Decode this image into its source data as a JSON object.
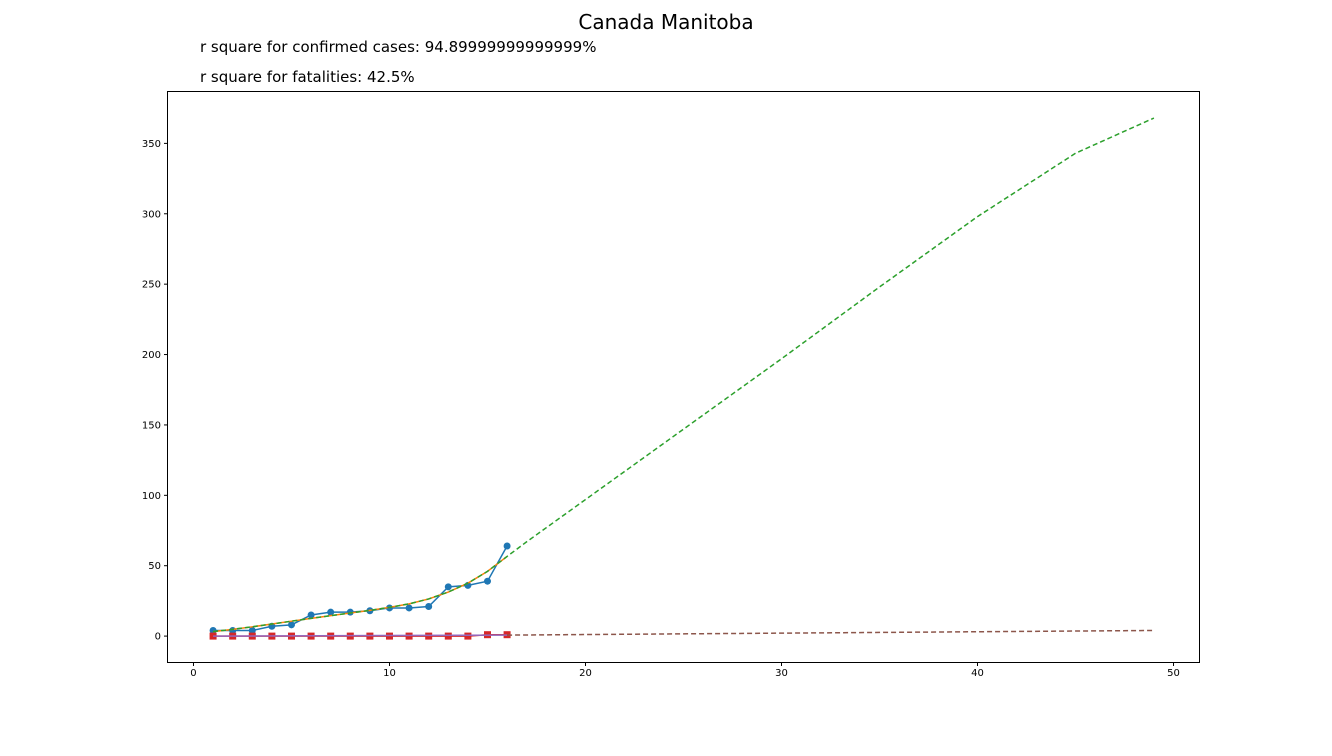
{
  "figure": {
    "title": "Canada Manitoba",
    "notes": [
      "r square for confirmed cases: 94.89999999999999%",
      "r square for fatalities: 42.5%"
    ]
  },
  "chart_data": {
    "type": "line",
    "title": "Canada Manitoba",
    "xlabel": "",
    "ylabel": "",
    "xlim": [
      -1.3,
      51.3
    ],
    "ylim": [
      -18.4,
      386.5
    ],
    "xticks": [
      0,
      10,
      20,
      30,
      40,
      50
    ],
    "yticks": [
      0,
      50,
      100,
      150,
      200,
      250,
      300,
      350
    ],
    "grid": false,
    "series": [
      {
        "kind": "observed",
        "marker": "circle",
        "color": "#1f77b4",
        "x": [
          1,
          2,
          3,
          4,
          5,
          6,
          7,
          8,
          9,
          10,
          11,
          12,
          13,
          14,
          15,
          16
        ],
        "y": [
          4,
          4,
          4,
          7,
          8,
          15,
          17,
          17,
          18,
          20,
          20,
          21,
          35,
          36,
          39,
          64
        ]
      },
      {
        "kind": "fit",
        "color": "#ff7f0e",
        "x": [
          1,
          2,
          3,
          4,
          5,
          6,
          7,
          8,
          9,
          10,
          11,
          12,
          13,
          14,
          15,
          16
        ],
        "y": [
          3.2,
          4.8,
          6.6,
          8.6,
          10.6,
          12.6,
          14.5,
          16.4,
          18.3,
          20.4,
          22.9,
          26.4,
          31.3,
          37.6,
          46.0,
          56.6
        ]
      },
      {
        "kind": "forecast",
        "dashed": true,
        "color": "#2ca02c",
        "x": [
          1,
          2,
          3,
          4,
          5,
          6,
          7,
          8,
          9,
          10,
          11,
          12,
          13,
          14,
          15,
          16,
          17,
          18,
          20,
          25,
          30,
          35,
          40,
          45,
          49
        ],
        "y": [
          3.2,
          4.8,
          6.6,
          8.6,
          10.6,
          12.6,
          14.5,
          16.4,
          18.3,
          20.4,
          22.9,
          26.4,
          31.3,
          37.6,
          46.0,
          56.6,
          67,
          77,
          97,
          147,
          197,
          248,
          298,
          343,
          368
        ]
      },
      {
        "kind": "observed",
        "marker": "square",
        "color": "#d62728",
        "x": [
          1,
          2,
          3,
          4,
          5,
          6,
          7,
          8,
          9,
          10,
          11,
          12,
          13,
          14,
          15,
          16
        ],
        "y": [
          0,
          0,
          0,
          0,
          0,
          0,
          0,
          0,
          0,
          0,
          0,
          0,
          0,
          0,
          1,
          1
        ]
      },
      {
        "kind": "fit",
        "color": "#9467bd",
        "x": [
          1,
          16
        ],
        "y": [
          0,
          0.7
        ]
      },
      {
        "kind": "forecast",
        "dashed": true,
        "color": "#8c564b",
        "x": [
          16,
          49
        ],
        "y": [
          0.7,
          4
        ]
      }
    ]
  }
}
